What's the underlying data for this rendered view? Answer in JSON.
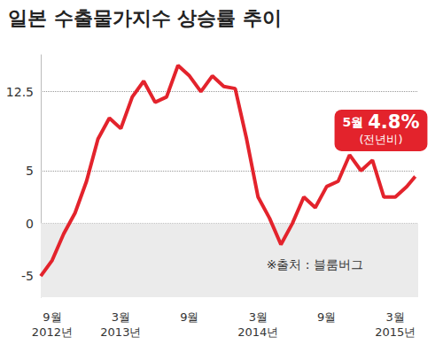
{
  "chart_data": {
    "type": "line",
    "title": "일본 수출물가지수 상승률 추이",
    "categories": [
      null,
      "9월\n2012년",
      null,
      null,
      null,
      null,
      null,
      "3월\n2013년",
      null,
      null,
      null,
      null,
      null,
      "9월",
      null,
      null,
      null,
      null,
      null,
      "3월\n2014년",
      null,
      null,
      null,
      null,
      null,
      "9월",
      null,
      null,
      null,
      null,
      null,
      "3월\n2015년",
      null,
      null
    ],
    "values": [
      -5,
      -3.5,
      -1,
      1,
      4,
      8,
      10,
      9,
      12,
      13.5,
      11.5,
      12,
      15,
      14,
      12.5,
      14,
      13,
      12.8,
      8,
      2.5,
      0.5,
      -2,
      0,
      2.5,
      1.5,
      3.5,
      4,
      6.5,
      5,
      6,
      2.5,
      2.5,
      3.5,
      4.8
    ],
    "color": "#e3232c",
    "ylim": [
      -7,
      16
    ],
    "yticks": [
      -5,
      0,
      5,
      12.5
    ],
    "grid": true,
    "callout": {
      "label": "5월",
      "value": 4.8,
      "value_label": "4.8%",
      "note": "(전년비)"
    },
    "source": "※출처 : 블룸버그"
  }
}
